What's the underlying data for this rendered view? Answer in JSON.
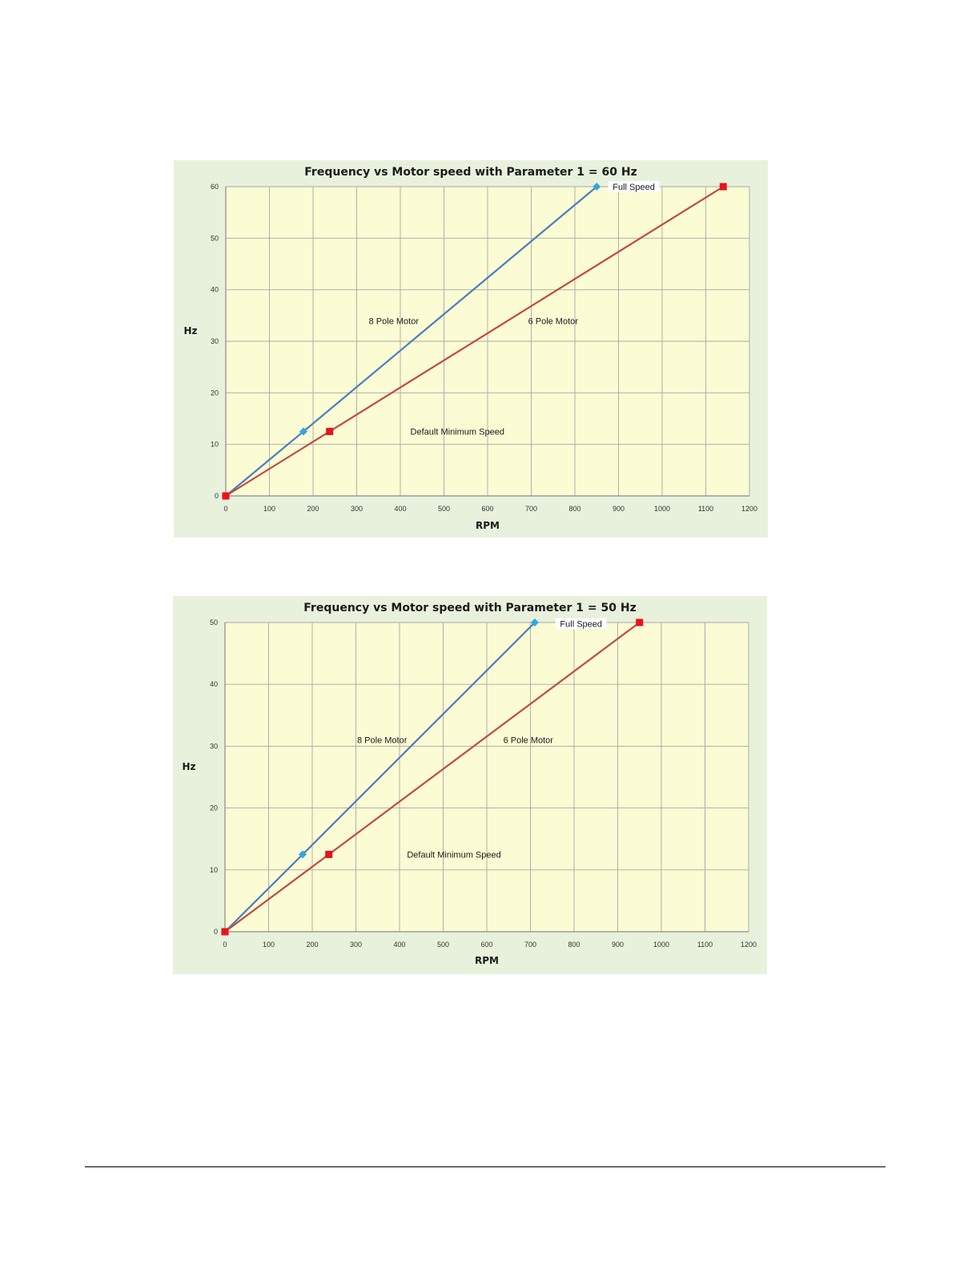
{
  "chart_data": [
    {
      "type": "line",
      "title": "Frequency vs Motor speed with Parameter 1 = 60 Hz",
      "xlabel": "RPM",
      "ylabel": "Hz",
      "xlim": [
        0,
        1200
      ],
      "ylim": [
        0,
        60
      ],
      "xticks": [
        0,
        100,
        200,
        300,
        400,
        500,
        600,
        700,
        800,
        900,
        1000,
        1100,
        1200
      ],
      "yticks": [
        0,
        10,
        20,
        30,
        40,
        50,
        60
      ],
      "grid": true,
      "colors": {
        "background": "#e8f1dc",
        "plot_area": "#fbfbd4",
        "grid": "#a8a8a8"
      },
      "series": [
        {
          "color": "#4a7ebb",
          "marker": "diamond",
          "marker_color": "#2ea7e0",
          "points": [
            [
              0,
              0
            ],
            [
              178,
              12.5
            ],
            [
              850,
              60
            ]
          ]
        },
        {
          "color": "#be4b48",
          "marker": "square",
          "marker_color": "#e8141c",
          "points": [
            [
              0,
              0
            ],
            [
              238,
              12.5
            ],
            [
              1140,
              60
            ]
          ]
        }
      ],
      "annotations": [
        {
          "text": "Full Speed",
          "x": 935,
          "y": 60
        },
        {
          "text": "8 Pole Motor",
          "x": 385,
          "y": 34
        },
        {
          "text": "6 Pole Motor",
          "x": 750,
          "y": 34
        },
        {
          "text": "Default Minimum Speed",
          "x": 390,
          "y": 12.5
        }
      ]
    },
    {
      "type": "line",
      "title": "Frequency vs Motor speed with Parameter 1 = 50 Hz",
      "xlabel": "RPM",
      "ylabel": "Hz",
      "xlim": [
        0,
        1200
      ],
      "ylim": [
        0,
        50
      ],
      "xticks": [
        0,
        100,
        200,
        300,
        400,
        500,
        600,
        700,
        800,
        900,
        1000,
        1100,
        1200
      ],
      "yticks": [
        0,
        10,
        20,
        30,
        40,
        50
      ],
      "grid": true,
      "colors": {
        "background": "#e8f1dc",
        "plot_area": "#fbfbd4",
        "grid": "#a8a8a8"
      },
      "series": [
        {
          "color": "#4a7ebb",
          "marker": "diamond",
          "marker_color": "#2ea7e0",
          "points": [
            [
              0,
              0
            ],
            [
              178,
              12.5
            ],
            [
              710,
              50
            ]
          ]
        },
        {
          "color": "#be4b48",
          "marker": "square",
          "marker_color": "#e8141c",
          "points": [
            [
              0,
              0
            ],
            [
              238,
              12.5
            ],
            [
              950,
              50
            ]
          ]
        }
      ],
      "annotations": [
        {
          "text": "Full Speed",
          "x": 816,
          "y": 49.8
        },
        {
          "text": "8 Pole Motor",
          "x": 360,
          "y": 31
        },
        {
          "text": "6 Pole Motor",
          "x": 695,
          "y": 31
        },
        {
          "text": "Default Minimum Speed",
          "x": 386,
          "y": 12.5
        }
      ]
    }
  ]
}
